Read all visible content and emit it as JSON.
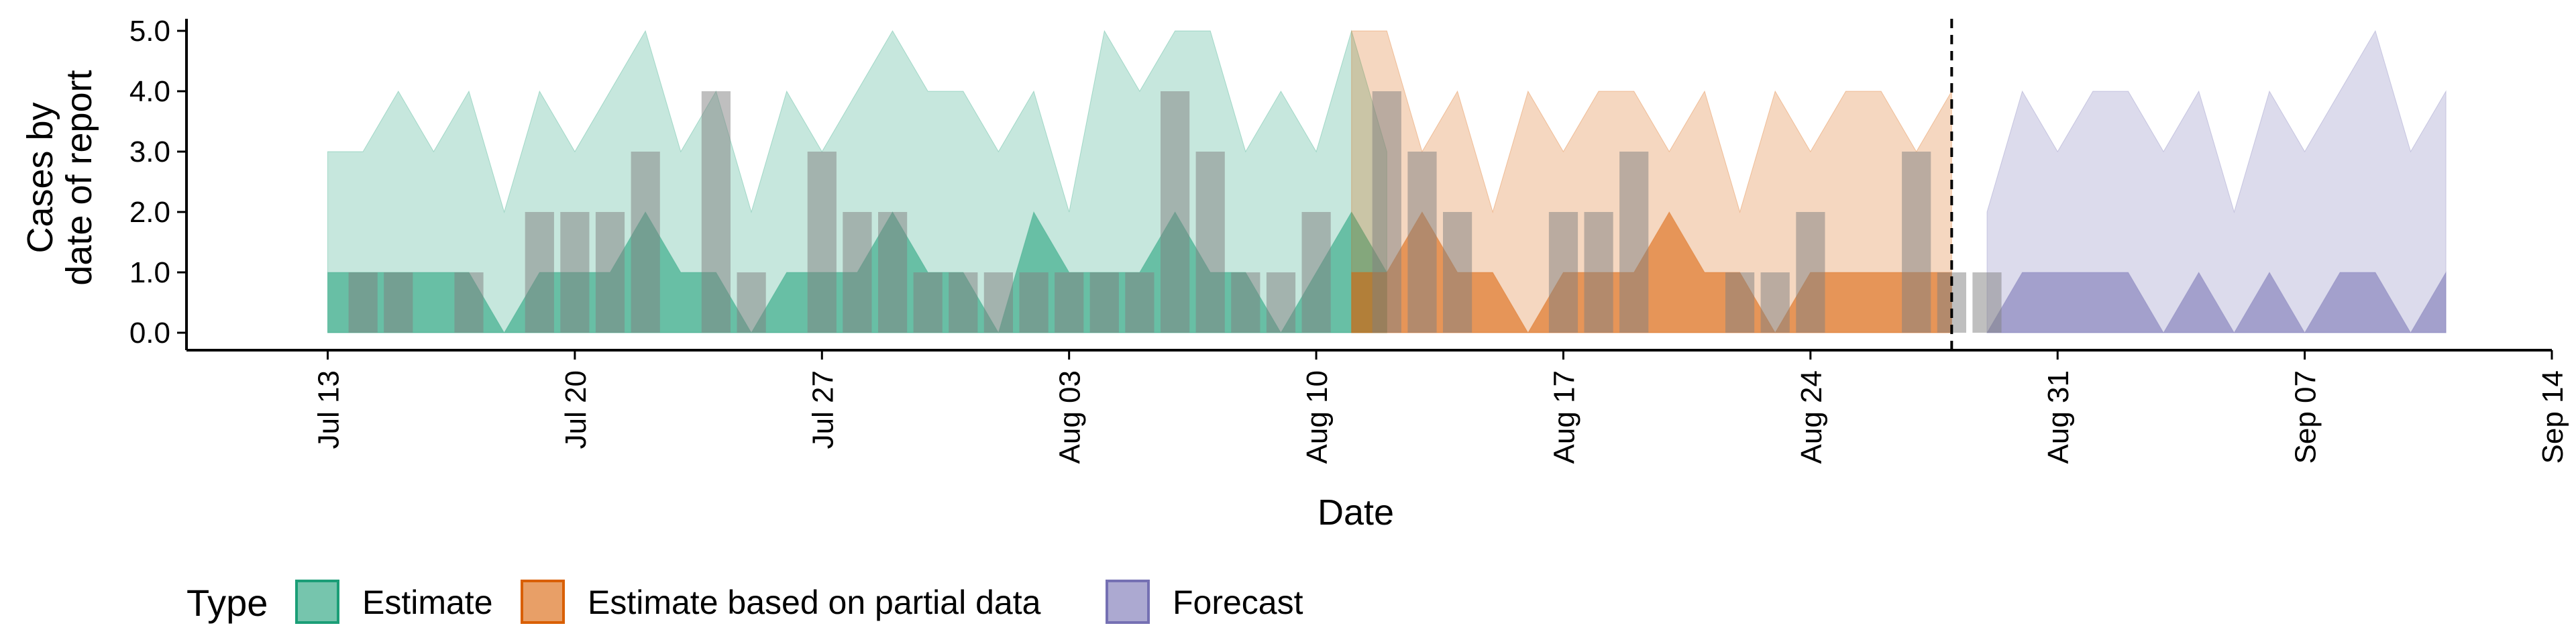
{
  "chart_data": {
    "type": "area",
    "xlabel": "Date",
    "ylabel_lines": [
      "Cases by",
      "date of report"
    ],
    "y_ticks": [
      "0.0",
      "1.0",
      "2.0",
      "3.0",
      "4.0",
      "5.0"
    ],
    "ylim": [
      0,
      5.2
    ],
    "xlim": [
      "2020-07-09",
      "2020-09-14"
    ],
    "x_ticks": [
      {
        "date": "2020-07-13",
        "label": "Jul 13"
      },
      {
        "date": "2020-07-20",
        "label": "Jul 20"
      },
      {
        "date": "2020-07-27",
        "label": "Jul 27"
      },
      {
        "date": "2020-08-03",
        "label": "Aug 03"
      },
      {
        "date": "2020-08-10",
        "label": "Aug 10"
      },
      {
        "date": "2020-08-17",
        "label": "Aug 17"
      },
      {
        "date": "2020-08-24",
        "label": "Aug 24"
      },
      {
        "date": "2020-08-31",
        "label": "Aug 31"
      },
      {
        "date": "2020-09-07",
        "label": "Sep 07"
      },
      {
        "date": "2020-09-14",
        "label": "Sep 14"
      }
    ],
    "vline_date": "2020-08-28",
    "legend": {
      "title": "Type",
      "position": "bottom",
      "items": [
        "Estimate",
        "Estimate based on partial data",
        "Forecast"
      ]
    },
    "colors": {
      "Estimate": "#1b9e77",
      "Estimate based on partial data": "#d95f02",
      "Forecast": "#7570b3",
      "observed": "#808080"
    },
    "series": [
      {
        "name": "Estimate",
        "start": "2020-07-13",
        "upper": [
          3,
          3,
          4,
          3,
          4,
          2,
          4,
          3,
          4,
          5,
          3,
          4,
          2,
          4,
          3,
          4,
          5,
          4,
          4,
          3,
          4,
          2,
          5,
          4,
          5,
          5,
          3,
          4,
          3,
          5,
          3
        ],
        "lower": [
          0,
          0,
          0,
          0,
          0,
          0,
          0,
          0,
          0,
          0,
          0,
          0,
          0,
          0,
          0,
          0,
          0,
          0,
          0,
          0,
          0,
          0,
          0,
          0,
          0,
          0,
          0,
          0,
          0,
          0,
          0
        ],
        "upper_mid": [
          1,
          1,
          1,
          1,
          1,
          0,
          1,
          1,
          1,
          2,
          1,
          1,
          0,
          1,
          1,
          1,
          2,
          1,
          1,
          0,
          2,
          1,
          1,
          1,
          2,
          1,
          1,
          0,
          1,
          2,
          1
        ],
        "lower_mid": [
          0,
          0,
          0,
          0,
          0,
          0,
          0,
          0,
          0,
          0,
          0,
          0,
          0,
          0,
          0,
          0,
          0,
          0,
          0,
          0,
          0,
          0,
          0,
          0,
          0,
          0,
          0,
          0,
          0,
          0,
          0
        ]
      },
      {
        "name": "Estimate based on partial data",
        "start": "2020-08-11",
        "upper": [
          5,
          5,
          3,
          4,
          2,
          4,
          3,
          4,
          4,
          3,
          4,
          2,
          4,
          3,
          4,
          4,
          3,
          4
        ],
        "lower": [
          0,
          0,
          0,
          0,
          0,
          0,
          0,
          0,
          0,
          0,
          0,
          0,
          0,
          0,
          0,
          0,
          0,
          0
        ],
        "upper_mid": [
          1,
          1,
          2,
          1,
          1,
          0,
          1,
          1,
          1,
          2,
          1,
          1,
          0,
          1,
          1,
          1,
          1,
          1
        ],
        "lower_mid": [
          0,
          0,
          0,
          0,
          0,
          0,
          0,
          0,
          0,
          0,
          0,
          0,
          0,
          0,
          0,
          0,
          0,
          0
        ]
      },
      {
        "name": "Forecast",
        "start": "2020-08-29",
        "upper": [
          2,
          4,
          3,
          4,
          4,
          3,
          4,
          2,
          4,
          3,
          4,
          5,
          3,
          4
        ],
        "lower": [
          0,
          0,
          0,
          0,
          0,
          0,
          0,
          0,
          0,
          0,
          0,
          0,
          0,
          0
        ],
        "upper_mid": [
          0,
          1,
          1,
          1,
          1,
          0,
          1,
          0,
          1,
          0,
          1,
          1,
          0,
          1
        ],
        "lower_mid": [
          0,
          0,
          0,
          0,
          0,
          0,
          0,
          0,
          0,
          0,
          0,
          0,
          0,
          0
        ]
      }
    ],
    "observed": {
      "start": "2020-07-13",
      "values": [
        0,
        1,
        1,
        0,
        1,
        0,
        2,
        2,
        2,
        3,
        0,
        4,
        1,
        0,
        3,
        2,
        2,
        1,
        1,
        1,
        1,
        1,
        1,
        1,
        4,
        3,
        1,
        1,
        2,
        0,
        4,
        3,
        2,
        0,
        0,
        2,
        2,
        3,
        0,
        0,
        1,
        1,
        2,
        0,
        0,
        3,
        1,
        1
      ]
    }
  }
}
